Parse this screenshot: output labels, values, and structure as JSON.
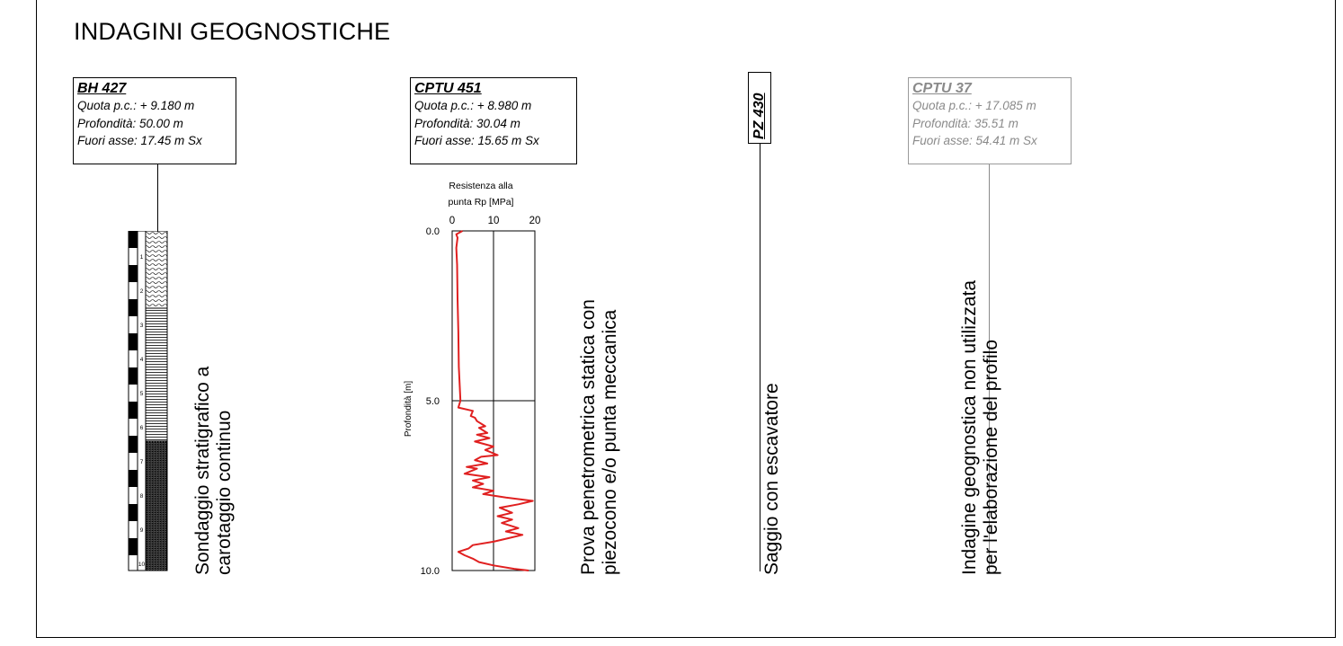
{
  "page": {
    "title": "INDAGINI GEOGNOSTICHE"
  },
  "boreholes": [
    {
      "name": "BH 427",
      "quota": "Quota p.c.: + 9.180 m",
      "profondita": "Profondità: 50.00 m",
      "fuori_asse": "Fuori asse: 17.45 m Sx",
      "description_line1": "Sondaggio stratigrafico a",
      "description_line2": "carotaggio continuo",
      "depth_marks": [
        "1",
        "2",
        "3",
        "4",
        "5",
        "6",
        "7",
        "8",
        "9",
        "10"
      ]
    },
    {
      "name": "CPTU 451",
      "quota": "Quota p.c.: + 8.980 m",
      "profondita": "Profondità: 30.04 m",
      "fuori_asse": "Fuori asse: 15.65 m Sx",
      "description_line1": "Prova penetrometrica statica con",
      "description_line2": "piezocono e/o punta meccanica"
    },
    {
      "name": "PZ 430",
      "description_line1": "Saggio con escavatore"
    },
    {
      "name": "CPTU 37",
      "quota": "Quota p.c.: + 17.085 m",
      "profondita": "Profondità: 35.51 m",
      "fuori_asse": "Fuori asse: 54.41 m Sx",
      "description_line1": "Indagine geognostica non utilizzata",
      "description_line2": "per l'elaborazione del profilo"
    }
  ],
  "chart_data": {
    "type": "line",
    "title": "Resistenza alla punta Rp [MPa]",
    "title_line1": "Resistenza alla",
    "title_line2": "punta Rp [MPa]",
    "xlabel": "Resistenza alla punta Rp [MPa]",
    "ylabel": "Profondità [m]",
    "xlim": [
      0,
      20
    ],
    "ylim": [
      0,
      10
    ],
    "y_inverted": true,
    "xticks": [
      "0",
      "10",
      "20"
    ],
    "yticks": [
      "0.0",
      "5.0",
      "10.0"
    ],
    "grid": true,
    "colors": {
      "series": "#e02020"
    },
    "series": [
      {
        "depth": [
          0.0,
          0.1,
          0.2,
          0.5,
          1.0,
          2.0,
          3.0,
          4.0,
          4.5,
          5.0,
          5.2,
          5.3,
          5.45,
          5.5,
          5.6,
          5.75,
          5.8,
          5.95,
          6.0,
          6.1,
          6.2,
          6.35,
          6.45,
          6.6,
          6.65,
          6.75,
          6.85,
          6.95,
          7.0,
          7.15,
          7.25,
          7.35,
          7.45,
          7.55,
          7.65,
          7.75,
          7.85,
          7.95,
          8.05,
          8.15,
          8.3,
          8.4,
          8.5,
          8.6,
          8.75,
          8.85,
          8.95,
          9.05,
          9.15,
          9.25,
          9.35,
          9.45,
          9.55,
          9.65,
          9.75,
          9.85,
          9.95,
          10.0
        ],
        "resistance": [
          2.5,
          1.0,
          1.3,
          1.0,
          1.2,
          1.3,
          1.5,
          1.6,
          1.8,
          2.0,
          1.5,
          5.0,
          4.5,
          5.5,
          6.0,
          8.0,
          6.5,
          8.5,
          6.0,
          9.0,
          5.5,
          10.0,
          8.0,
          11.0,
          7.0,
          5.5,
          8.5,
          3.5,
          6.0,
          3.0,
          9.0,
          5.0,
          7.5,
          5.0,
          10.0,
          7.5,
          13.0,
          19.5,
          16.0,
          11.5,
          14.5,
          11.0,
          14.5,
          12.0,
          16.0,
          13.0,
          17.0,
          13.5,
          10.0,
          5.0,
          4.0,
          1.5,
          3.0,
          5.0,
          6.5,
          10.0,
          15.0,
          18.5
        ]
      }
    ]
  }
}
